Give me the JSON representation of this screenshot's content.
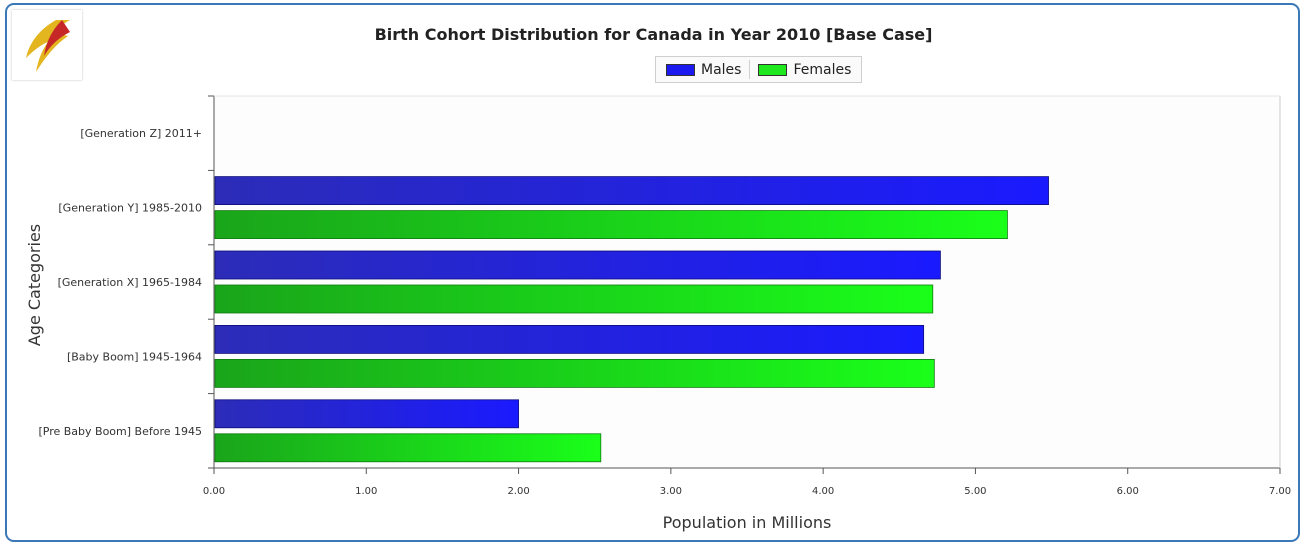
{
  "chart_data": {
    "type": "bar",
    "orientation": "horizontal",
    "title": "Birth Cohort Distribution for Canada in Year  2010 [Base Case]",
    "xlabel": "Population in Millions",
    "ylabel": "Age Categories",
    "xlim": [
      0,
      7
    ],
    "x_ticks": [
      "0.00",
      "1.00",
      "2.00",
      "3.00",
      "4.00",
      "5.00",
      "6.00",
      "7.00"
    ],
    "categories": [
      "[Generation Z] 2011+",
      "[Generation Y] 1985-2010",
      "[Generation X] 1965-1984",
      "[Baby Boom] 1945-1964",
      "[Pre Baby Boom] Before 1945"
    ],
    "series": [
      {
        "name": "Males",
        "color": "#1a1af0",
        "values": [
          0,
          5.48,
          4.77,
          4.66,
          2.0
        ]
      },
      {
        "name": "Females",
        "color": "#1fe81f",
        "values": [
          0,
          5.21,
          4.72,
          4.73,
          2.54
        ]
      }
    ],
    "legend": "top-center",
    "grid": false
  }
}
